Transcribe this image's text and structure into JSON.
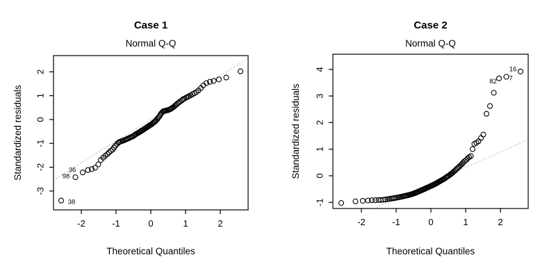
{
  "colors": {
    "foreground": "#000000",
    "refline": "#9a9a9a",
    "background": "#ffffff"
  },
  "chart_data": [
    {
      "type": "scatter",
      "title": "Case 1",
      "subtitle": "Normal Q-Q",
      "xlabel": "Theoretical Quantiles",
      "ylabel": "Standardized residuals",
      "xlim": [
        -2.8,
        2.8
      ],
      "ylim": [
        -3.79,
        2.68
      ],
      "x_ticks": [
        -2,
        -1,
        0,
        1,
        2
      ],
      "y_ticks": [
        -3,
        -2,
        -1,
        0,
        1,
        2
      ],
      "grid": false,
      "legend": null,
      "marker": {
        "shape": "circle-open",
        "color": "#000000"
      },
      "refline": {
        "slope": 0.91,
        "intercept": 0.01,
        "style": "dotted"
      },
      "points": {
        "x": [
          -2.58,
          -2.17,
          -1.96,
          -1.81,
          -1.7,
          -1.6,
          -1.51,
          -1.44,
          -1.37,
          -1.31,
          -1.25,
          -1.2,
          -1.15,
          -1.1,
          -1.06,
          -1.02,
          -0.97,
          -0.93,
          -0.9,
          -0.86,
          -0.82,
          -0.79,
          -0.75,
          -0.72,
          -0.69,
          -0.66,
          -0.63,
          -0.6,
          -0.57,
          -0.54,
          -0.51,
          -0.48,
          -0.45,
          -0.43,
          -0.4,
          -0.37,
          -0.35,
          -0.32,
          -0.29,
          -0.27,
          -0.24,
          -0.21,
          -0.19,
          -0.16,
          -0.14,
          -0.11,
          -0.09,
          -0.06,
          -0.04,
          -0.01,
          0.01,
          0.04,
          0.06,
          0.09,
          0.11,
          0.14,
          0.16,
          0.19,
          0.21,
          0.24,
          0.27,
          0.29,
          0.32,
          0.35,
          0.37,
          0.4,
          0.43,
          0.45,
          0.48,
          0.51,
          0.54,
          0.57,
          0.6,
          0.63,
          0.66,
          0.69,
          0.72,
          0.75,
          0.79,
          0.82,
          0.86,
          0.9,
          0.93,
          0.97,
          1.02,
          1.06,
          1.1,
          1.15,
          1.2,
          1.25,
          1.31,
          1.37,
          1.44,
          1.51,
          1.6,
          1.7,
          1.81,
          1.96,
          2.17,
          2.58
        ],
        "y": [
          -3.4,
          -2.42,
          -2.22,
          -2.12,
          -2.08,
          -2.02,
          -1.88,
          -1.7,
          -1.6,
          -1.52,
          -1.45,
          -1.38,
          -1.31,
          -1.26,
          -1.18,
          -1.1,
          -1.02,
          -0.97,
          -0.94,
          -0.92,
          -0.9,
          -0.88,
          -0.86,
          -0.84,
          -0.82,
          -0.8,
          -0.78,
          -0.76,
          -0.74,
          -0.72,
          -0.7,
          -0.67,
          -0.64,
          -0.61,
          -0.59,
          -0.57,
          -0.55,
          -0.52,
          -0.5,
          -0.47,
          -0.45,
          -0.42,
          -0.4,
          -0.37,
          -0.35,
          -0.33,
          -0.3,
          -0.28,
          -0.25,
          -0.23,
          -0.21,
          -0.18,
          -0.15,
          -0.12,
          -0.09,
          -0.06,
          -0.02,
          0.02,
          0.07,
          0.12,
          0.18,
          0.24,
          0.29,
          0.33,
          0.35,
          0.36,
          0.37,
          0.38,
          0.39,
          0.4,
          0.42,
          0.44,
          0.47,
          0.5,
          0.53,
          0.57,
          0.61,
          0.65,
          0.69,
          0.73,
          0.77,
          0.81,
          0.85,
          0.88,
          0.92,
          0.95,
          0.98,
          1.02,
          1.06,
          1.1,
          1.15,
          1.22,
          1.32,
          1.43,
          1.53,
          1.58,
          1.62,
          1.68,
          1.76,
          2.02
        ]
      },
      "point_labels": [
        {
          "text": "36",
          "x": -2.26,
          "y": -2.1
        },
        {
          "text": "98",
          "x": -2.44,
          "y": -2.36
        },
        {
          "text": "38",
          "x": -2.28,
          "y": -3.44
        }
      ]
    },
    {
      "type": "scatter",
      "title": "Case 2",
      "subtitle": "Normal Q-Q",
      "xlabel": "Theoretical Quantiles",
      "ylabel": "Standardized residuals",
      "xlim": [
        -2.82,
        2.8
      ],
      "ylim": [
        -1.23,
        4.57
      ],
      "x_ticks": [
        -2,
        -1,
        0,
        1,
        2
      ],
      "y_ticks": [
        -1,
        0,
        1,
        2,
        3,
        4
      ],
      "grid": false,
      "legend": null,
      "marker": {
        "shape": "circle-open",
        "color": "#000000"
      },
      "refline": {
        "slope": 0.583,
        "intercept": -0.27,
        "style": "dotted"
      },
      "points": {
        "x": [
          -2.58,
          -2.17,
          -1.96,
          -1.81,
          -1.7,
          -1.6,
          -1.51,
          -1.44,
          -1.37,
          -1.31,
          -1.25,
          -1.2,
          -1.15,
          -1.1,
          -1.06,
          -1.02,
          -0.97,
          -0.93,
          -0.9,
          -0.86,
          -0.82,
          -0.79,
          -0.75,
          -0.72,
          -0.69,
          -0.66,
          -0.63,
          -0.6,
          -0.57,
          -0.54,
          -0.51,
          -0.48,
          -0.45,
          -0.43,
          -0.4,
          -0.37,
          -0.35,
          -0.32,
          -0.29,
          -0.27,
          -0.24,
          -0.21,
          -0.19,
          -0.16,
          -0.14,
          -0.11,
          -0.09,
          -0.06,
          -0.04,
          -0.01,
          0.01,
          0.04,
          0.06,
          0.09,
          0.11,
          0.14,
          0.16,
          0.19,
          0.21,
          0.24,
          0.27,
          0.29,
          0.32,
          0.35,
          0.37,
          0.4,
          0.43,
          0.45,
          0.48,
          0.51,
          0.54,
          0.57,
          0.6,
          0.63,
          0.66,
          0.69,
          0.72,
          0.75,
          0.79,
          0.82,
          0.86,
          0.9,
          0.93,
          0.97,
          1.02,
          1.06,
          1.1,
          1.15,
          1.2,
          1.25,
          1.31,
          1.37,
          1.44,
          1.51,
          1.6,
          1.7,
          1.81,
          1.96,
          2.17,
          2.58
        ],
        "y": [
          -1.02,
          -0.96,
          -0.94,
          -0.93,
          -0.92,
          -0.92,
          -0.91,
          -0.91,
          -0.9,
          -0.89,
          -0.88,
          -0.87,
          -0.86,
          -0.85,
          -0.84,
          -0.83,
          -0.82,
          -0.81,
          -0.8,
          -0.79,
          -0.78,
          -0.77,
          -0.76,
          -0.75,
          -0.74,
          -0.73,
          -0.72,
          -0.71,
          -0.7,
          -0.69,
          -0.67,
          -0.66,
          -0.65,
          -0.63,
          -0.62,
          -0.6,
          -0.59,
          -0.57,
          -0.56,
          -0.54,
          -0.53,
          -0.51,
          -0.5,
          -0.48,
          -0.47,
          -0.45,
          -0.44,
          -0.42,
          -0.41,
          -0.39,
          -0.38,
          -0.36,
          -0.35,
          -0.33,
          -0.31,
          -0.3,
          -0.28,
          -0.26,
          -0.24,
          -0.22,
          -0.2,
          -0.18,
          -0.16,
          -0.14,
          -0.12,
          -0.1,
          -0.07,
          -0.05,
          -0.02,
          0.0,
          0.03,
          0.06,
          0.09,
          0.12,
          0.16,
          0.19,
          0.23,
          0.27,
          0.31,
          0.35,
          0.4,
          0.45,
          0.5,
          0.55,
          0.6,
          0.66,
          0.7,
          0.74,
          1.0,
          1.2,
          1.24,
          1.3,
          1.42,
          1.55,
          2.33,
          2.62,
          3.12,
          3.66,
          3.72,
          3.92
        ]
      },
      "point_labels": [
        {
          "text": "16",
          "x": 2.36,
          "y": 4.02
        },
        {
          "text": "82",
          "x": 1.79,
          "y": 3.56
        },
        {
          "text": "7",
          "x": 2.3,
          "y": 3.68
        }
      ]
    }
  ]
}
